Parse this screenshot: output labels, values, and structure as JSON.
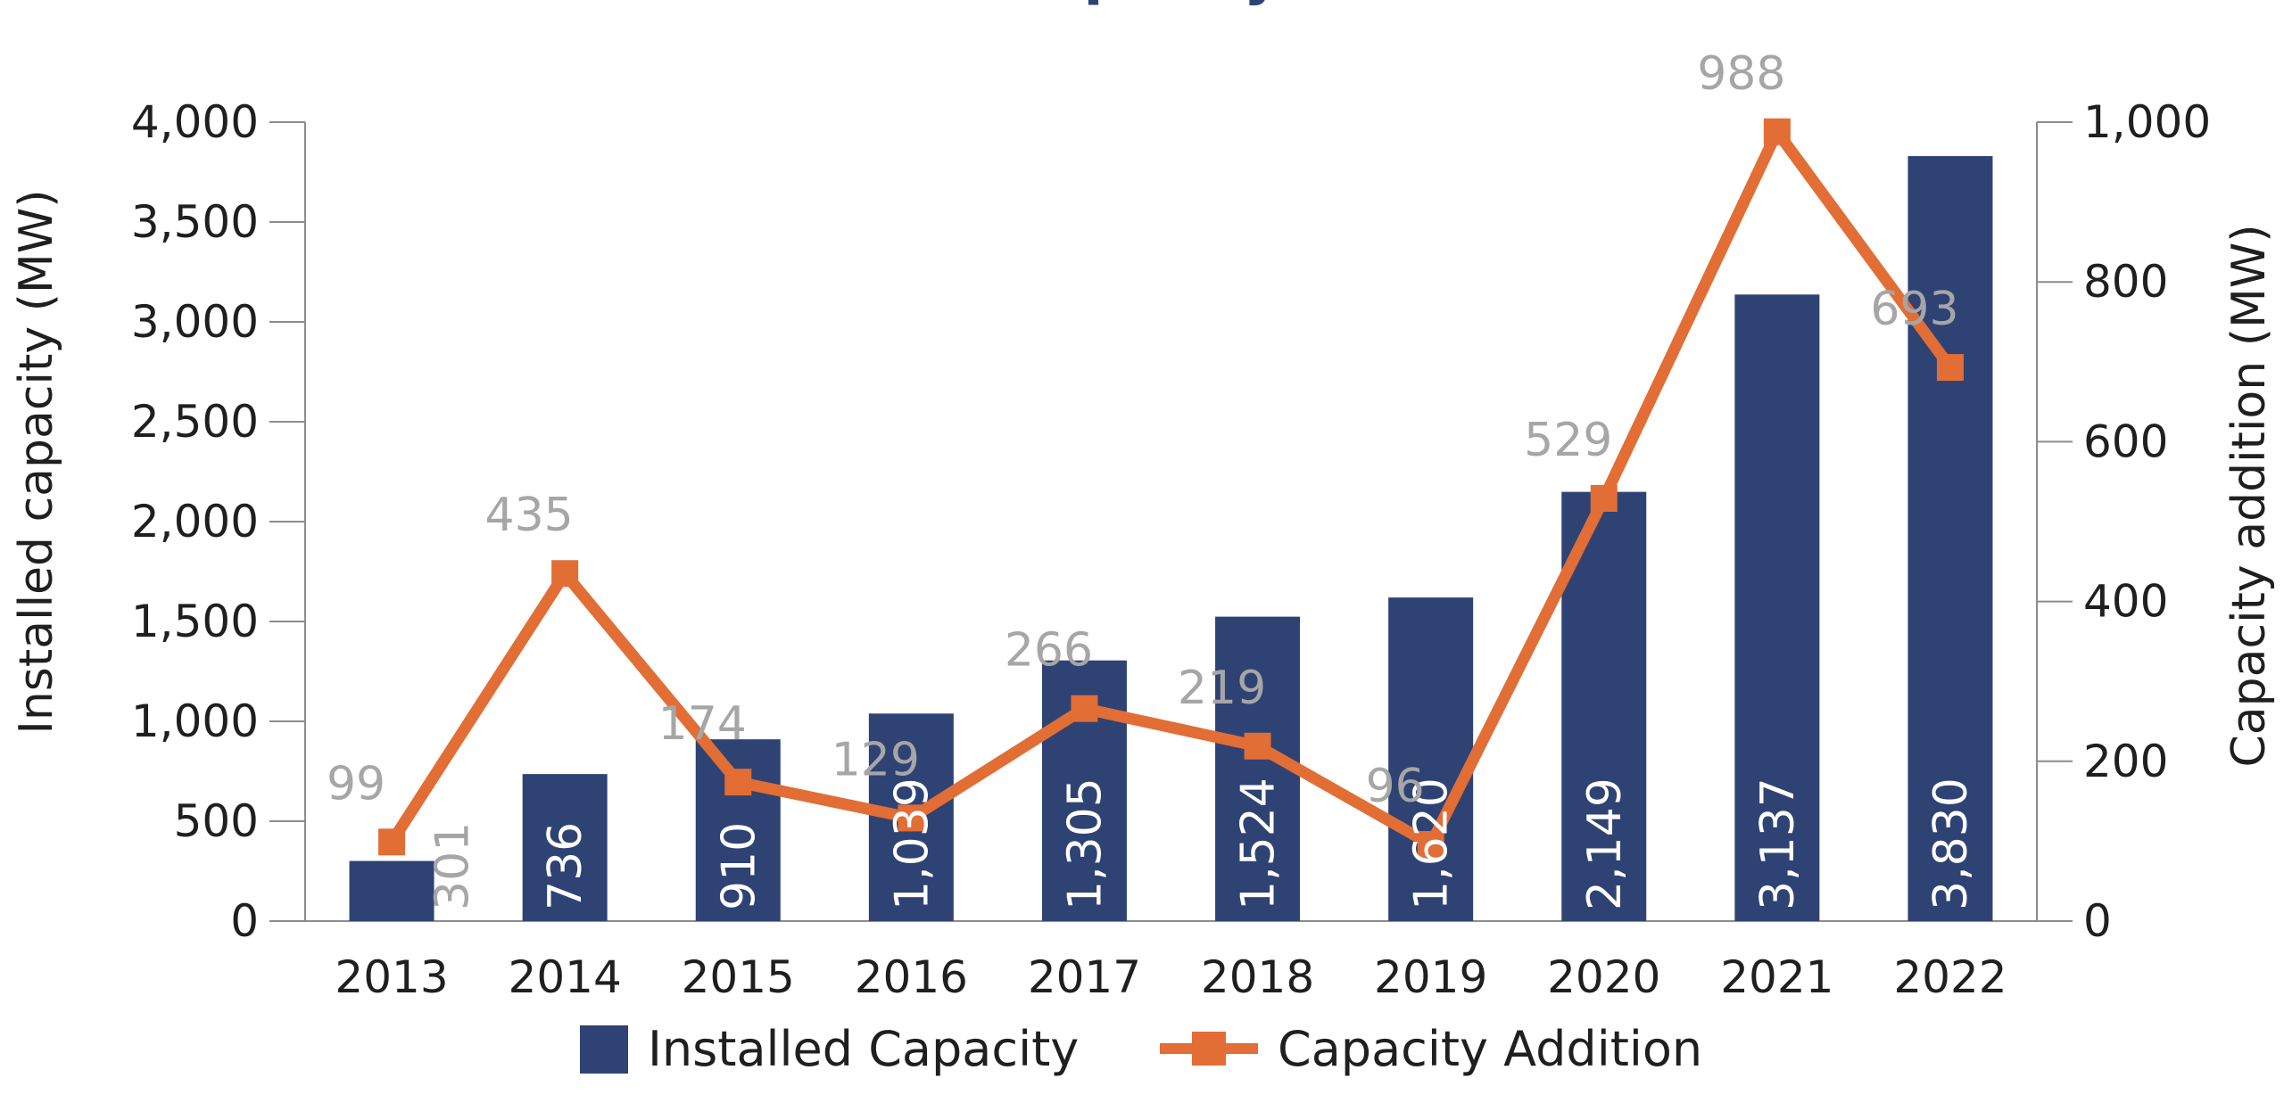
{
  "chart_data": {
    "type": "bar",
    "title": "Capacity",
    "categories": [
      "2013",
      "2014",
      "2015",
      "2016",
      "2017",
      "2018",
      "2019",
      "2020",
      "2021",
      "2022"
    ],
    "series": [
      {
        "name": "Installed Capacity",
        "type": "bar",
        "axis": "left",
        "color": "#2e4374",
        "values": [
          301,
          736,
          910,
          1039,
          1305,
          1524,
          1620,
          2149,
          3137,
          3830
        ],
        "labels": [
          "301",
          "736",
          "910",
          "1,039",
          "1,305",
          "1,524",
          "1,620",
          "2,149",
          "3,137",
          "3,830"
        ]
      },
      {
        "name": "Capacity Addition",
        "type": "line",
        "axis": "right",
        "color": "#e26d35",
        "values": [
          99,
          435,
          174,
          129,
          266,
          219,
          96,
          529,
          988,
          693
        ],
        "labels": [
          "99",
          "435",
          "174",
          "129",
          "266",
          "219",
          "96",
          "529",
          "988",
          "693"
        ]
      }
    ],
    "ylabel": "Installed capacity (MW)",
    "y2label": "Capacity addition (MW)",
    "ylim": [
      0,
      4000
    ],
    "y2lim": [
      0,
      1000
    ],
    "yticks": [
      0,
      500,
      1000,
      1500,
      2000,
      2500,
      3000,
      3500,
      4000
    ],
    "yticklabels": [
      "0",
      "500",
      "1,000",
      "1,500",
      "2,000",
      "2,500",
      "3,000",
      "3,500",
      "4,000"
    ],
    "y2ticks": [
      0,
      200,
      400,
      600,
      800,
      1000
    ],
    "y2ticklabels": [
      "0",
      "200",
      "400",
      "600",
      "800",
      "1,000"
    ],
    "legend": [
      "Installed Capacity",
      "Capacity Addition"
    ],
    "legend_position": "bottom",
    "grid": false
  }
}
